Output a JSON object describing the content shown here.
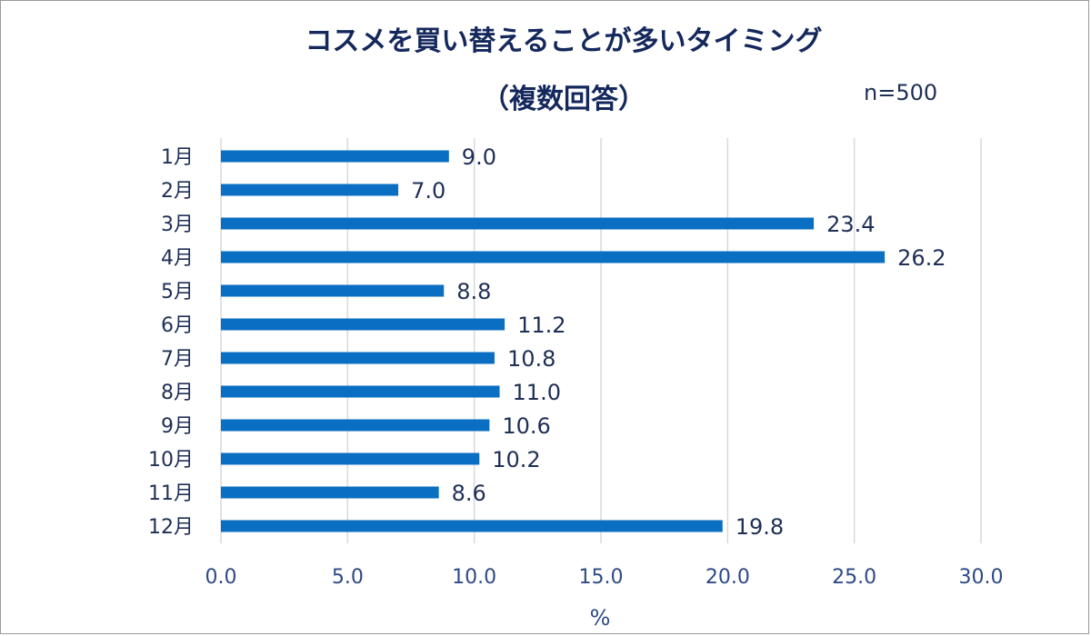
{
  "chart_data": {
    "type": "bar",
    "orientation": "horizontal",
    "title": "コスメを買い替えることが多いタイミング",
    "subtitle": "（複数回答）",
    "sample_note": "n=500",
    "xlabel": "%",
    "ylabel": "",
    "xlim": [
      0,
      30
    ],
    "x_ticks": [
      "0.0",
      "5.0",
      "10.0",
      "15.0",
      "20.0",
      "25.0",
      "30.0"
    ],
    "x_tick_values": [
      0,
      5,
      10,
      15,
      20,
      25,
      30
    ],
    "categories": [
      "1月",
      "2月",
      "3月",
      "4月",
      "5月",
      "6月",
      "7月",
      "8月",
      "9月",
      "10月",
      "11月",
      "12月"
    ],
    "values": [
      9.0,
      7.0,
      23.4,
      26.2,
      8.8,
      11.2,
      10.8,
      11.0,
      10.6,
      10.2,
      8.6,
      19.8
    ],
    "value_labels": [
      "9.0",
      "7.0",
      "23.4",
      "26.2",
      "8.8",
      "11.2",
      "10.8",
      "11.0",
      "10.6",
      "10.2",
      "8.6",
      "19.8"
    ],
    "grid": "vertical",
    "legend": "none",
    "bar_color": "#0a6fc2",
    "grid_color": "#d9d9d9",
    "text_color": "#1f2f55"
  }
}
